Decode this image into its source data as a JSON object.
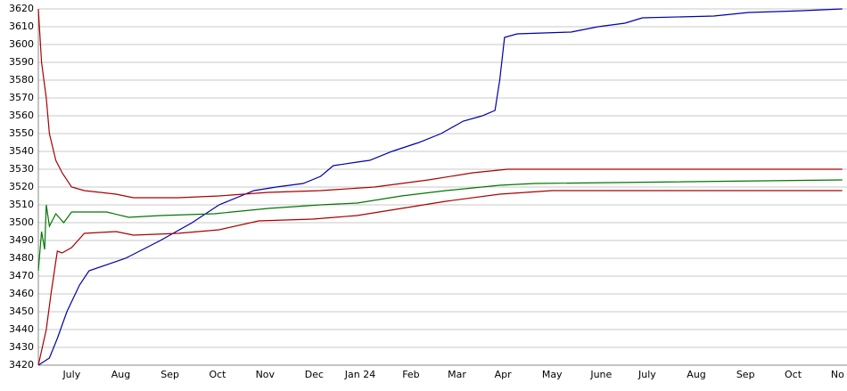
{
  "chart_data": {
    "type": "line",
    "xlim": [
      0,
      510
    ],
    "xticks": [
      {
        "value": 21,
        "label": "July"
      },
      {
        "value": 52,
        "label": "Aug"
      },
      {
        "value": 83,
        "label": "Sep"
      },
      {
        "value": 113,
        "label": "Oct"
      },
      {
        "value": 143,
        "label": "Nov"
      },
      {
        "value": 174,
        "label": "Dec"
      },
      {
        "value": 203,
        "label": "Jan 24"
      },
      {
        "value": 235,
        "label": "Feb"
      },
      {
        "value": 264,
        "label": "Mar"
      },
      {
        "value": 293,
        "label": "Apr"
      },
      {
        "value": 324,
        "label": "May"
      },
      {
        "value": 355,
        "label": "June"
      },
      {
        "value": 384,
        "label": "July"
      },
      {
        "value": 415,
        "label": "Aug"
      },
      {
        "value": 446,
        "label": "Sep"
      },
      {
        "value": 476,
        "label": "Oct"
      },
      {
        "value": 504,
        "label": "No"
      }
    ],
    "ylim": [
      3420,
      3620
    ],
    "yticks": [
      3420,
      3430,
      3440,
      3450,
      3460,
      3470,
      3480,
      3490,
      3500,
      3510,
      3520,
      3530,
      3540,
      3550,
      3560,
      3570,
      3580,
      3590,
      3600,
      3610,
      3620
    ],
    "grid": true,
    "series": [
      {
        "color": "#0000aa",
        "x": [
          0,
          7,
          12,
          18,
          26,
          32,
          55,
          77,
          97,
          114,
          136,
          150,
          167,
          178,
          186,
          201,
          209,
          223,
          240,
          254,
          268,
          280,
          288,
          291,
          294,
          302,
          336,
          353,
          370,
          381,
          426,
          448,
          482,
          507
        ],
        "values": [
          3420,
          3424,
          3435,
          3450,
          3465,
          3473,
          3480,
          3490,
          3500,
          3510,
          3518,
          3520,
          3522,
          3526,
          3532,
          3534,
          3535,
          3540,
          3545,
          3550,
          3557,
          3560,
          3563,
          3580,
          3604,
          3606,
          3607,
          3610,
          3612,
          3615,
          3616,
          3618,
          3619,
          3620
        ]
      },
      {
        "color": "#aa0000",
        "x": [
          0,
          2,
          5,
          7,
          11,
          15,
          21,
          29,
          49,
          60,
          88,
          114,
          145,
          178,
          212,
          246,
          274,
          296,
          370,
          507
        ],
        "values": [
          3620,
          3590,
          3570,
          3550,
          3535,
          3528,
          3520,
          3518,
          3516,
          3514,
          3514,
          3515,
          3517,
          3518,
          3520,
          3524,
          3528,
          3530,
          3530,
          3530
        ]
      },
      {
        "color": "#007700",
        "x": [
          0,
          2,
          4,
          5,
          7,
          11,
          16,
          21,
          43,
          57,
          77,
          111,
          145,
          178,
          201,
          229,
          257,
          291,
          313,
          507
        ],
        "values": [
          3473,
          3495,
          3485,
          3510,
          3498,
          3505,
          3500,
          3506,
          3506,
          3503,
          3504,
          3505,
          3508,
          3510,
          3511,
          3515,
          3518,
          3521,
          3522,
          3524
        ]
      },
      {
        "color": "#aa0000",
        "x": [
          0,
          5,
          8,
          12,
          15,
          21,
          29,
          49,
          60,
          88,
          114,
          139,
          173,
          201,
          229,
          257,
          291,
          324,
          507
        ],
        "values": [
          3420,
          3440,
          3460,
          3484,
          3483,
          3486,
          3494,
          3495,
          3493,
          3494,
          3496,
          3501,
          3502,
          3504,
          3508,
          3512,
          3516,
          3518,
          3518
        ]
      }
    ]
  }
}
